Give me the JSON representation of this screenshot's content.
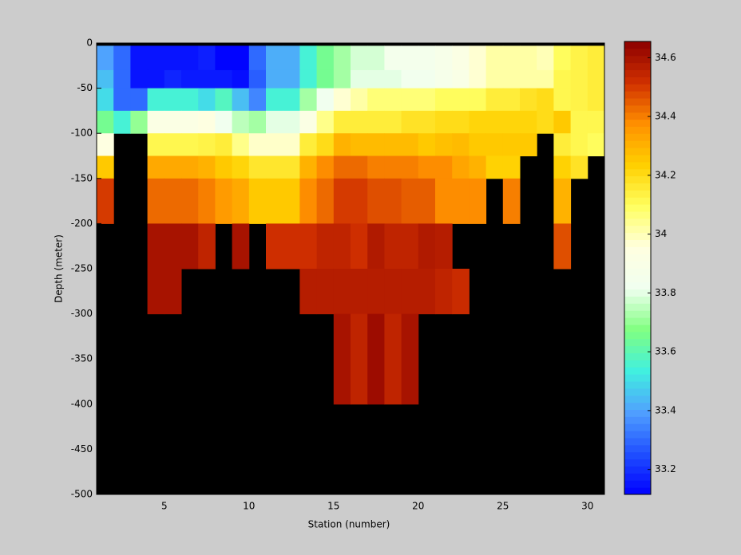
{
  "chart_data": {
    "type": "heatmap",
    "xlabel": "Station (number)",
    "ylabel": "Depth (meter)",
    "x": [
      1,
      2,
      3,
      4,
      5,
      6,
      7,
      8,
      9,
      10,
      11,
      12,
      13,
      14,
      15,
      16,
      17,
      18,
      19,
      20,
      21,
      22,
      23,
      24,
      25,
      26,
      27,
      28,
      29,
      30,
      31
    ],
    "y": [
      -3,
      -30,
      -50,
      -75,
      -100,
      -125,
      -150,
      -200,
      -250,
      -300,
      -400,
      -500
    ],
    "values": [
      [
        33.4,
        33.3,
        33.15,
        33.15,
        33.15,
        33.15,
        33.17,
        33.12,
        33.12,
        33.3,
        33.42,
        33.42,
        33.55,
        33.65,
        33.72,
        33.78,
        33.78,
        33.85,
        33.85,
        33.85,
        33.88,
        33.92,
        33.97,
        34.02,
        34.02,
        34.02,
        34.0,
        34.1,
        34.13,
        34.15
      ],
      [
        33.45,
        33.3,
        33.15,
        33.15,
        33.18,
        33.16,
        33.16,
        33.16,
        33.14,
        33.28,
        33.42,
        33.42,
        33.55,
        33.65,
        33.72,
        33.8,
        33.8,
        33.8,
        33.83,
        33.83,
        33.87,
        33.9,
        33.97,
        34.02,
        34.02,
        34.02,
        34.02,
        34.12,
        34.13,
        34.15
      ],
      [
        33.5,
        33.3,
        33.3,
        33.55,
        33.55,
        33.55,
        33.5,
        33.58,
        33.45,
        33.35,
        33.55,
        33.55,
        33.72,
        33.82,
        33.97,
        34.02,
        34.07,
        34.07,
        34.07,
        34.07,
        34.1,
        34.1,
        34.1,
        34.15,
        34.15,
        34.18,
        34.2,
        34.12,
        34.13,
        34.15
      ],
      [
        33.65,
        33.55,
        33.7,
        33.92,
        33.92,
        33.92,
        33.95,
        33.82,
        33.75,
        33.72,
        33.8,
        33.8,
        33.92,
        34.05,
        34.15,
        34.15,
        34.15,
        34.15,
        34.18,
        34.18,
        34.2,
        34.2,
        34.22,
        34.22,
        34.22,
        34.22,
        34.2,
        34.25,
        34.12,
        34.12
      ],
      [
        33.95,
        null,
        null,
        34.12,
        34.12,
        34.12,
        34.13,
        34.15,
        34.05,
        33.98,
        33.98,
        33.98,
        34.15,
        34.2,
        34.3,
        34.28,
        34.28,
        34.28,
        34.28,
        34.25,
        34.27,
        34.28,
        34.25,
        34.25,
        34.25,
        34.25,
        null,
        34.15,
        34.12,
        34.1
      ],
      [
        34.25,
        null,
        null,
        34.32,
        34.32,
        34.32,
        34.3,
        34.25,
        34.22,
        34.17,
        34.17,
        34.17,
        34.3,
        34.38,
        34.43,
        34.43,
        34.4,
        34.4,
        34.4,
        34.38,
        34.38,
        34.33,
        34.3,
        34.23,
        34.23,
        null,
        null,
        34.23,
        34.18,
        null
      ],
      [
        34.5,
        null,
        null,
        34.43,
        34.43,
        34.43,
        34.4,
        34.35,
        34.32,
        34.25,
        34.25,
        34.25,
        34.38,
        34.43,
        34.5,
        34.5,
        34.47,
        34.47,
        34.45,
        34.45,
        34.38,
        34.38,
        34.38,
        null,
        34.4,
        null,
        null,
        34.3,
        null,
        null
      ],
      [
        null,
        null,
        null,
        34.6,
        34.6,
        34.6,
        34.55,
        null,
        34.6,
        null,
        34.52,
        34.52,
        34.52,
        34.55,
        34.55,
        34.52,
        34.58,
        34.55,
        34.55,
        34.58,
        34.57,
        null,
        null,
        null,
        null,
        null,
        null,
        34.47,
        null,
        null
      ],
      [
        null,
        null,
        null,
        34.6,
        34.6,
        null,
        null,
        null,
        null,
        null,
        null,
        null,
        34.57,
        34.57,
        34.57,
        34.57,
        34.57,
        34.57,
        34.57,
        34.57,
        34.55,
        34.53,
        null,
        null,
        null,
        null,
        null,
        null,
        null,
        null
      ],
      [
        null,
        null,
        null,
        null,
        null,
        null,
        null,
        null,
        null,
        null,
        null,
        null,
        null,
        null,
        34.6,
        34.55,
        34.62,
        34.55,
        34.6,
        null,
        null,
        null,
        null,
        null,
        null,
        null,
        null,
        null,
        null,
        null
      ],
      [
        null,
        null,
        null,
        null,
        null,
        null,
        null,
        null,
        null,
        null,
        null,
        null,
        null,
        null,
        null,
        null,
        null,
        null,
        null,
        null,
        null,
        null,
        null,
        null,
        null,
        null,
        null,
        null,
        null,
        null
      ]
    ],
    "xlim": [
      1,
      31
    ],
    "xticks": [
      5,
      10,
      15,
      20,
      25,
      30
    ],
    "ylim": [
      -500,
      0
    ],
    "yticks": [
      -500,
      -450,
      -400,
      -350,
      -300,
      -250,
      -200,
      -150,
      -100,
      -50,
      0
    ],
    "clim": [
      33.115,
      34.655
    ],
    "cticks": [
      33.2,
      33.4,
      33.6,
      33.8,
      34,
      34.2,
      34.4,
      34.6
    ],
    "colormap": [
      "#0000ff",
      "#2050ff",
      "#50a0ff",
      "#40f0e0",
      "#80ff80",
      "#f0fff0",
      "#ffffe0",
      "#ffff60",
      "#ffd000",
      "#ff9000",
      "#d03000",
      "#8c0000"
    ],
    "missing_color": "#000000"
  }
}
